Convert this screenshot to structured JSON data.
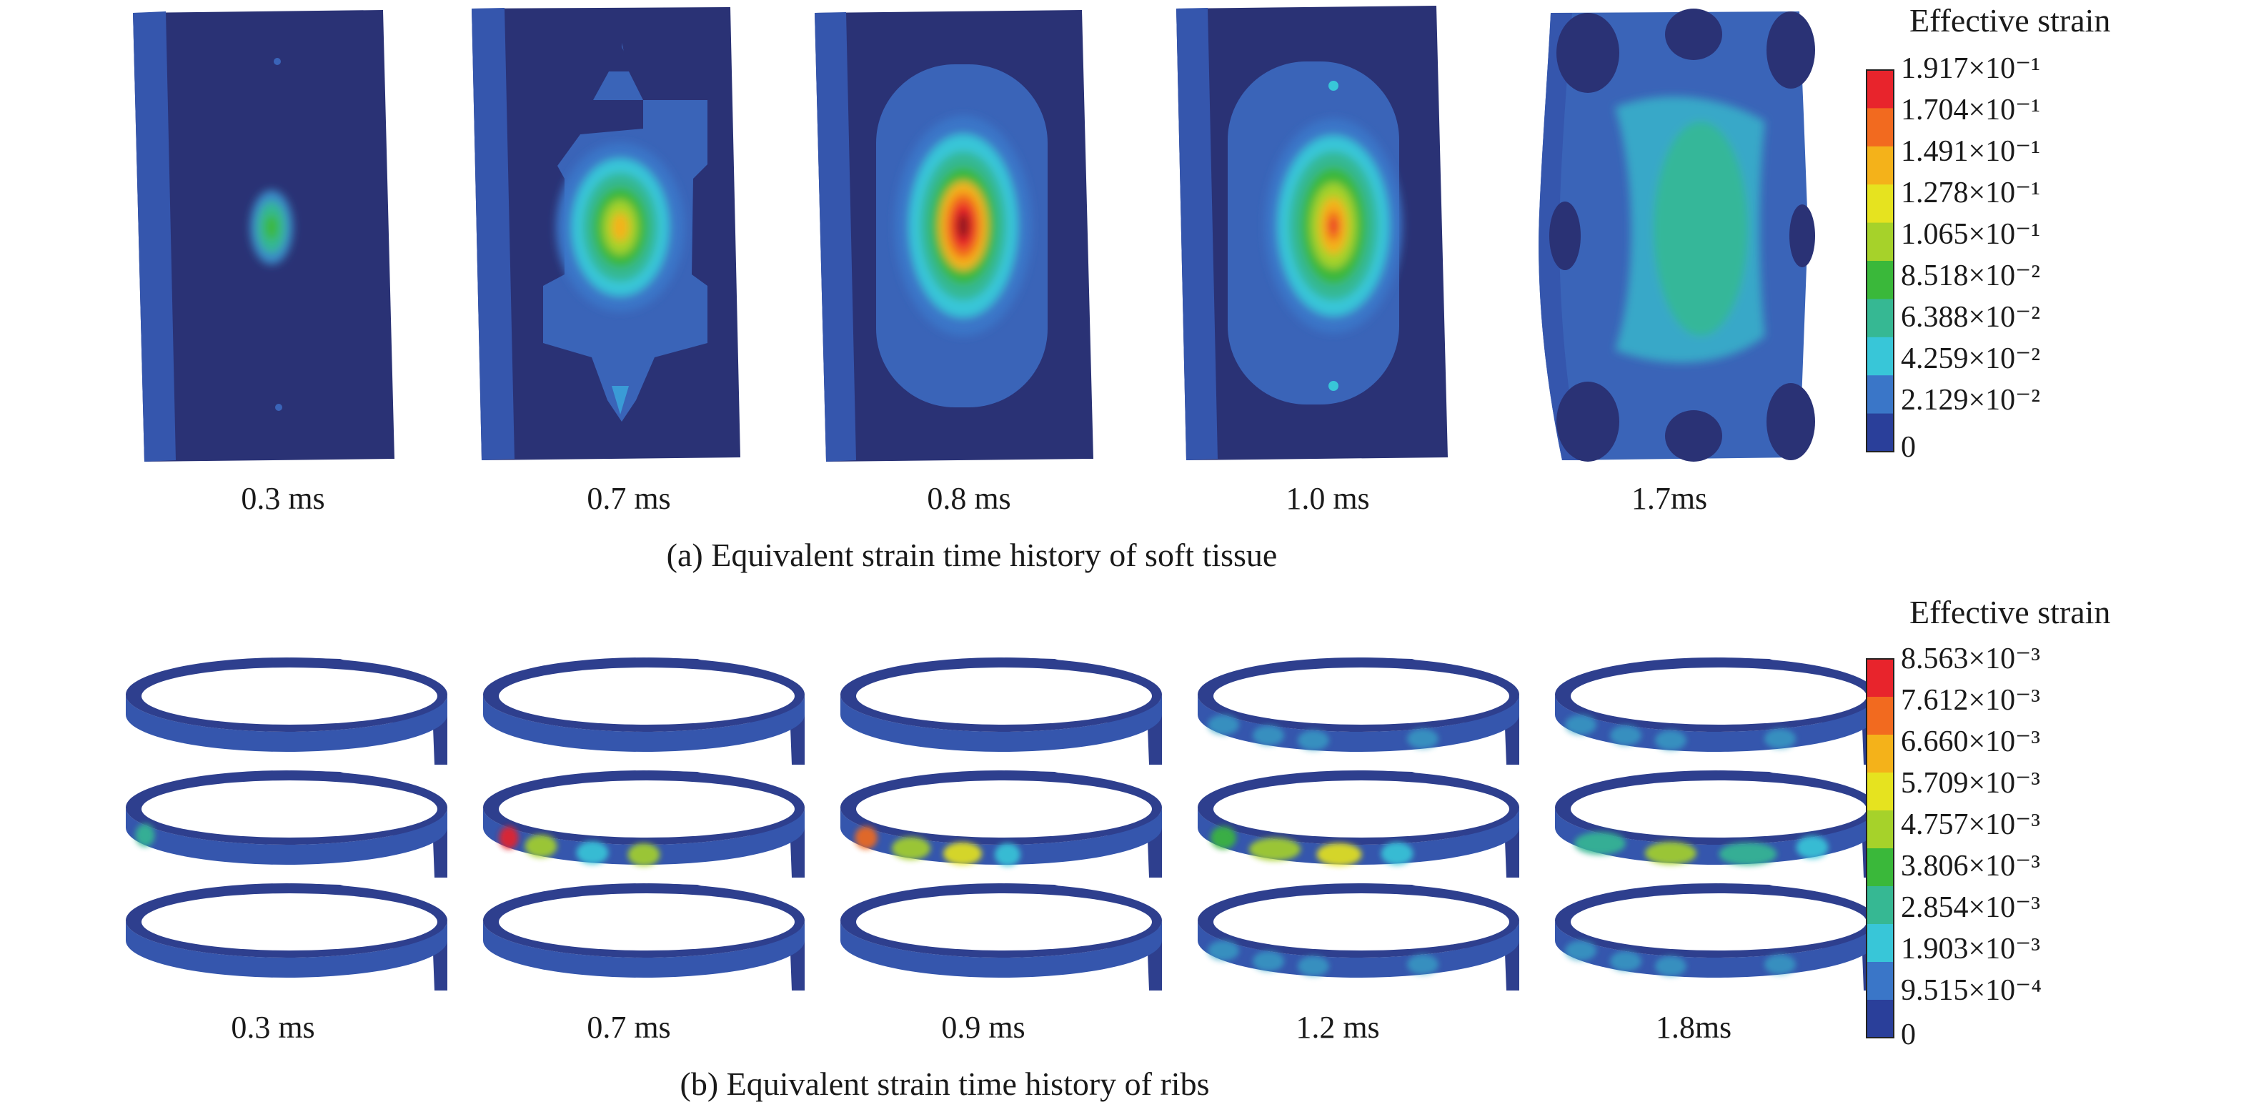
{
  "panel_a": {
    "caption": "(a) Equivalent strain time history of soft tissue",
    "time_labels": [
      "0.3 ms",
      "0.7 ms",
      "0.8 ms",
      "1.0 ms",
      "1.7ms"
    ],
    "legend_title": "Effective strain",
    "legend_values": [
      "1.917×10⁻¹",
      "1.704×10⁻¹",
      "1.491×10⁻¹",
      "1.278×10⁻¹",
      "1.065×10⁻¹",
      "8.518×10⁻²",
      "6.388×10⁻²",
      "4.259×10⁻²",
      "2.129×10⁻²",
      "0"
    ]
  },
  "panel_b": {
    "caption": "(b) Equivalent strain time history of ribs",
    "time_labels": [
      "0.3 ms",
      "0.7 ms",
      "0.9 ms",
      "1.2 ms",
      "1.8ms"
    ],
    "legend_title": "Effective strain",
    "legend_values": [
      "8.563×10⁻³",
      "7.612×10⁻³",
      "6.660×10⁻³",
      "5.709×10⁻³",
      "4.757×10⁻³",
      "3.806×10⁻³",
      "2.854×10⁻³",
      "1.903×10⁻³",
      "9.515×10⁻⁴",
      "0"
    ]
  },
  "colors": {
    "scale": [
      "#e8242c",
      "#f26a1f",
      "#f4b21a",
      "#e6e31f",
      "#a6d22a",
      "#3ab83a",
      "#36b893",
      "#38c6d8",
      "#3a76c8",
      "#2a3f9a"
    ],
    "background_body": "#26306b",
    "plate_edge": "#3556ad"
  }
}
